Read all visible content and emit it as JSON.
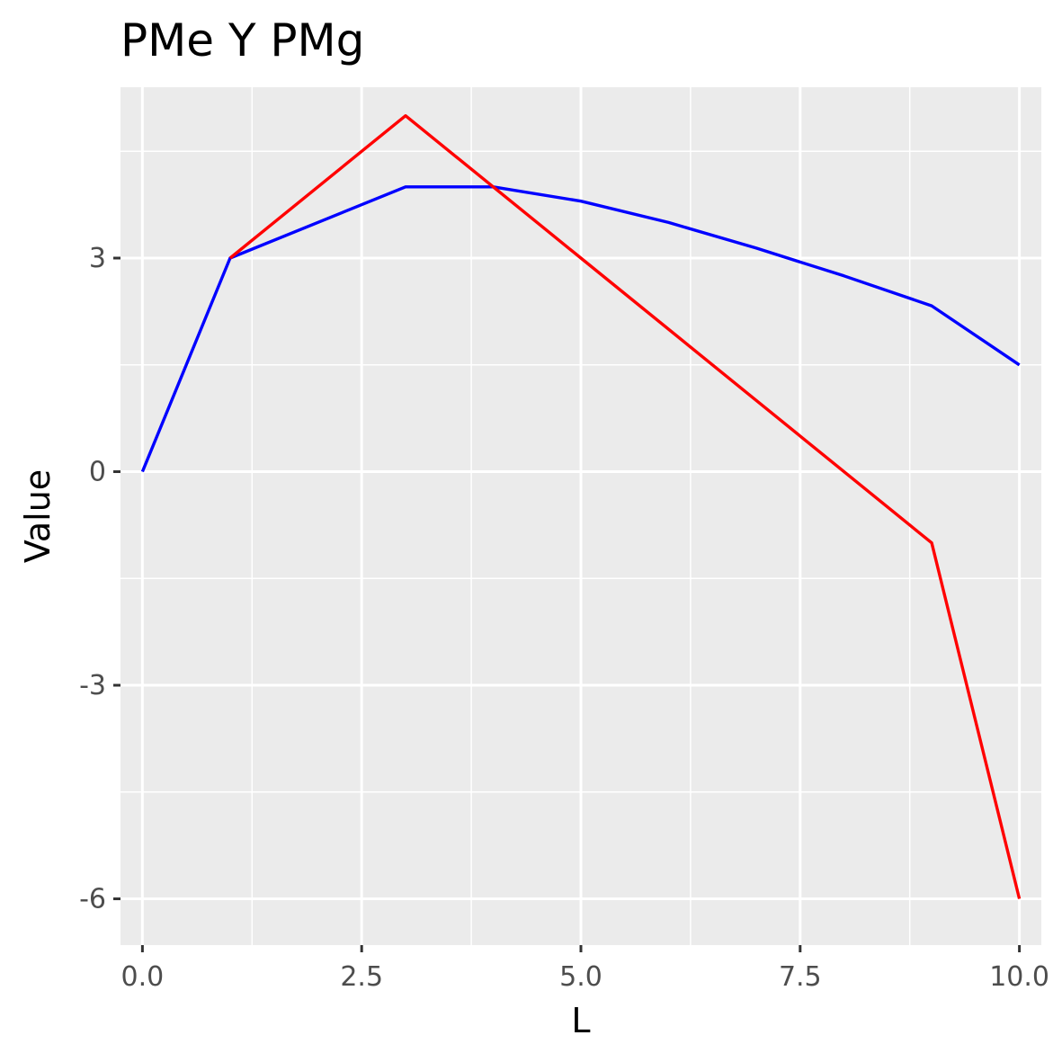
{
  "chart_data": {
    "type": "line",
    "title": "PMe Y PMg",
    "xlabel": "L",
    "ylabel": "Value",
    "xlim": [
      -0.25,
      10.25
    ],
    "ylim": [
      -6.65,
      5.4
    ],
    "x_ticks": [
      0,
      2.5,
      5,
      7.5,
      10
    ],
    "x_tick_labels": [
      "0.0",
      "2.5",
      "5.0",
      "7.5",
      "10.0"
    ],
    "y_ticks": [
      3,
      0,
      -3,
      -6
    ],
    "y_tick_labels": [
      "3",
      "0",
      "-3",
      "-6"
    ],
    "x_minor": [
      1.25,
      3.75,
      6.25,
      8.75
    ],
    "y_minor": [
      4.5,
      1.5,
      -1.5,
      -4.5
    ],
    "grid": true,
    "legend": "none",
    "series": [
      {
        "color": "#0000ff",
        "points": [
          [
            0,
            0
          ],
          [
            1,
            3
          ],
          [
            3,
            4
          ],
          [
            4,
            4
          ],
          [
            5,
            3.8
          ],
          [
            6,
            3.5
          ],
          [
            7,
            3.14
          ],
          [
            8,
            2.75
          ],
          [
            9,
            2.33
          ],
          [
            10,
            1.5
          ]
        ]
      },
      {
        "color": "#ff0000",
        "points": [
          [
            1,
            3
          ],
          [
            3,
            5
          ],
          [
            5,
            3
          ],
          [
            7,
            1
          ],
          [
            9,
            -1
          ],
          [
            10,
            -6
          ]
        ]
      }
    ]
  }
}
